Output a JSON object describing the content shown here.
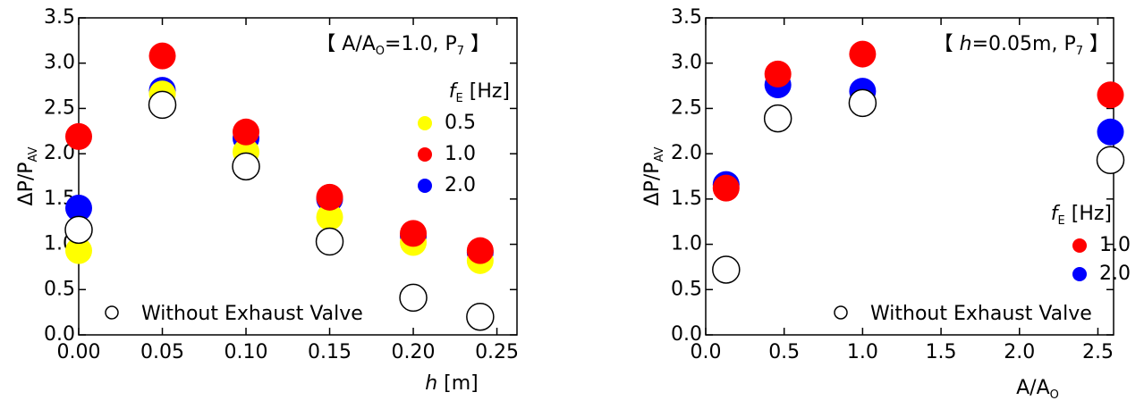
{
  "chart_data": [
    {
      "type": "scatter",
      "annotation": [
        {
          "text": "【 A/A",
          "style": "normal"
        },
        {
          "text": "O",
          "style": "sub"
        },
        {
          "text": "=1.0, P",
          "style": "normal"
        },
        {
          "text": "7",
          "style": "sub"
        },
        {
          "text": " 】",
          "style": "normal"
        }
      ],
      "y_label": [
        {
          "text": "ΔP/P",
          "style": "normal"
        },
        {
          "text": "AV",
          "style": "sub"
        }
      ],
      "x_label": [
        {
          "text": "h",
          "style": "italic"
        },
        {
          "text": " [m]",
          "style": "normal"
        }
      ],
      "legend_title": [
        {
          "text": "f",
          "style": "italic"
        },
        {
          "text": "E",
          "style": "sub"
        },
        {
          "text": " [Hz]",
          "style": "normal"
        }
      ],
      "legend": "upper right",
      "x": [
        0,
        0.05,
        0.1,
        0.15,
        0.2,
        0.24
      ],
      "xlim": [
        0,
        0.262
      ],
      "xticks": [
        {
          "value": 0,
          "label": "0.00"
        },
        {
          "value": 0.05,
          "label": "0.05"
        },
        {
          "value": 0.1,
          "label": "0.10"
        },
        {
          "value": 0.15,
          "label": "0.15"
        },
        {
          "value": 0.2,
          "label": "0.20"
        },
        {
          "value": 0.25,
          "label": "0.25"
        }
      ],
      "ylim": [
        0,
        3.5
      ],
      "yticks": [
        {
          "value": 0,
          "label": "0.0"
        },
        0.5,
        {
          "value": 1,
          "label": "1.0"
        },
        1.5,
        {
          "value": 2,
          "label": "2.0"
        },
        2.5,
        {
          "value": 3,
          "label": "3.0"
        },
        3.5
      ],
      "series": [
        {
          "name": "2.0",
          "color": "#0000ff",
          "marker": "filled",
          "values": [
            1.4,
            2.7,
            2.17,
            1.5,
            1.09,
            0.91
          ]
        },
        {
          "name": "0.5",
          "color": "#ffff00",
          "marker": "filled",
          "values": [
            0.93,
            2.66,
            2.02,
            1.3,
            1.02,
            0.82
          ]
        },
        {
          "name": "1.0",
          "color": "#ff0000",
          "marker": "filled",
          "values": [
            2.19,
            3.08,
            2.24,
            1.52,
            1.12,
            0.93
          ]
        },
        {
          "name": "Without Exhaust Valve",
          "color": "#000000",
          "marker": "open",
          "values": [
            1.16,
            2.54,
            1.86,
            1.03,
            0.41,
            0.2
          ]
        }
      ]
    },
    {
      "type": "scatter",
      "annotation": [
        {
          "text": "【 ",
          "style": "normal"
        },
        {
          "text": "h",
          "style": "italic"
        },
        {
          "text": "=0.05m, P",
          "style": "normal"
        },
        {
          "text": "7",
          "style": "sub"
        },
        {
          "text": " 】",
          "style": "normal"
        }
      ],
      "y_label": [
        {
          "text": "ΔP/P",
          "style": "normal"
        },
        {
          "text": "AV",
          "style": "sub"
        }
      ],
      "x_label": [
        {
          "text": "A/A",
          "style": "normal"
        },
        {
          "text": "O",
          "style": "sub"
        }
      ],
      "legend_title": [
        {
          "text": "f",
          "style": "italic"
        },
        {
          "text": "E",
          "style": "sub"
        },
        {
          "text": " [Hz]",
          "style": "normal"
        }
      ],
      "legend": "lower right",
      "x": [
        0.13,
        0.46,
        1.0,
        2.58
      ],
      "xlim": [
        0,
        2.6
      ],
      "xticks": [
        {
          "value": 0,
          "label": "0.0"
        },
        0.5,
        {
          "value": 1,
          "label": "1.0"
        },
        1.5,
        {
          "value": 2,
          "label": "2.0"
        },
        2.5
      ],
      "ylim": [
        0,
        3.5
      ],
      "yticks": [
        {
          "value": 0,
          "label": "0.0"
        },
        0.5,
        {
          "value": 1,
          "label": "1.0"
        },
        1.5,
        {
          "value": 2,
          "label": "2.0"
        },
        2.5,
        {
          "value": 3,
          "label": "3.0"
        },
        3.5
      ],
      "series": [
        {
          "name": "2.0",
          "color": "#0000ff",
          "marker": "filled",
          "values": [
            1.66,
            2.76,
            2.69,
            2.24
          ]
        },
        {
          "name": "1.0",
          "color": "#ff0000",
          "marker": "filled",
          "values": [
            1.62,
            2.88,
            3.1,
            2.65
          ]
        },
        {
          "name": "Without Exhaust Valve",
          "color": "#000000",
          "marker": "open",
          "values": [
            0.72,
            2.39,
            2.56,
            1.93
          ]
        }
      ]
    }
  ]
}
